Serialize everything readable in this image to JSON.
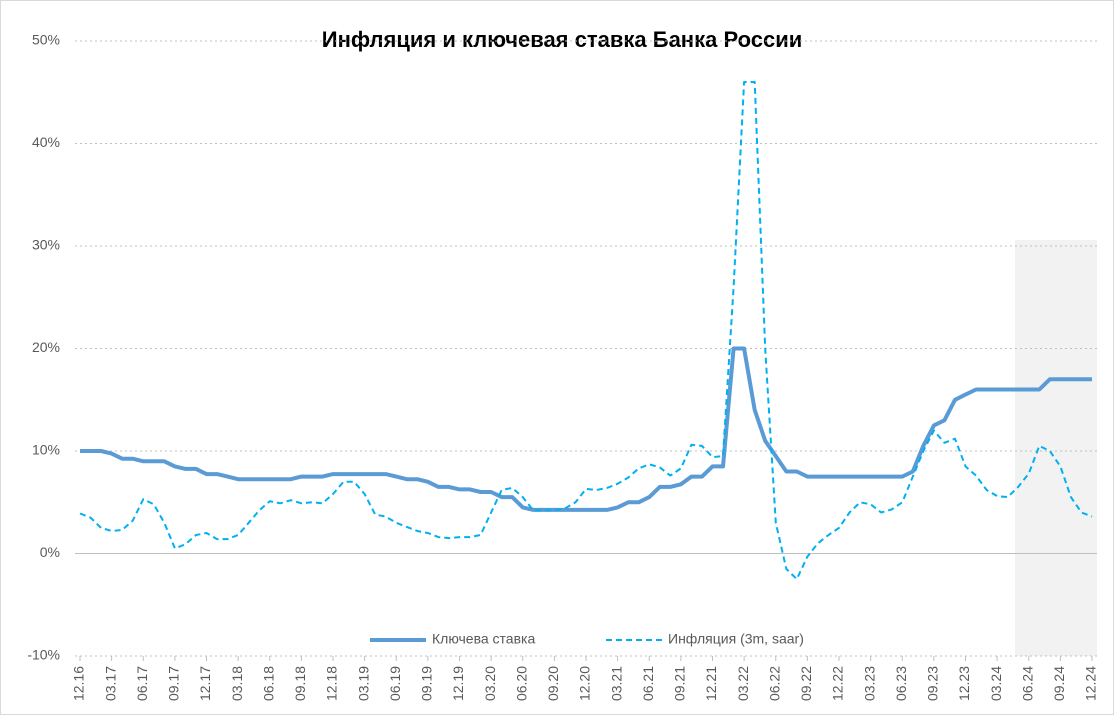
{
  "chart_data": {
    "type": "line",
    "title": "Инфляция и ключевая ставка Банка России",
    "categories": [
      "12.16",
      null,
      null,
      "03.17",
      null,
      null,
      "06.17",
      null,
      null,
      "09.17",
      null,
      null,
      "12.17",
      null,
      null,
      "03.18",
      null,
      null,
      "06.18",
      null,
      null,
      "09.18",
      null,
      null,
      "12.18",
      null,
      null,
      "03.19",
      null,
      null,
      "06.19",
      null,
      null,
      "09.19",
      null,
      null,
      "12.19",
      null,
      null,
      "03.20",
      null,
      null,
      "06.20",
      null,
      null,
      "09.20",
      null,
      null,
      "12.20",
      null,
      null,
      "03.21",
      null,
      null,
      "06.21",
      null,
      null,
      "09.21",
      null,
      null,
      "12.21",
      null,
      null,
      "03.22",
      null,
      null,
      "06.22",
      null,
      null,
      "09.22",
      null,
      null,
      "12.22",
      null,
      null,
      "03.23",
      null,
      null,
      "06.23",
      null,
      null,
      "09.23",
      null,
      null,
      "12.23",
      null,
      null,
      "03.24",
      null,
      null,
      "06.24",
      null,
      null,
      "09.24",
      null,
      null,
      "12.24"
    ],
    "series": [
      {
        "name": "Ключева ставка",
        "color": "#5b9bd5",
        "linestyle": "solid",
        "values": [
          10,
          10,
          10,
          9.75,
          9.25,
          9.25,
          9,
          9,
          9,
          8.5,
          8.25,
          8.25,
          7.75,
          7.75,
          7.5,
          7.25,
          7.25,
          7.25,
          7.25,
          7.25,
          7.25,
          7.5,
          7.5,
          7.5,
          7.75,
          7.75,
          7.75,
          7.75,
          7.75,
          7.75,
          7.5,
          7.25,
          7.25,
          7,
          6.5,
          6.5,
          6.25,
          6.25,
          6,
          6,
          5.5,
          5.5,
          4.5,
          4.25,
          4.25,
          4.25,
          4.25,
          4.25,
          4.25,
          4.25,
          4.25,
          4.5,
          5,
          5,
          5.5,
          6.5,
          6.5,
          6.75,
          7.5,
          7.5,
          8.5,
          8.5,
          20,
          20,
          14,
          11,
          9.5,
          8,
          8,
          7.5,
          7.5,
          7.5,
          7.5,
          7.5,
          7.5,
          7.5,
          7.5,
          7.5,
          7.5,
          8,
          10.5,
          12.5,
          13,
          15,
          15.5,
          16,
          16,
          16,
          16,
          16,
          16,
          16,
          17,
          17,
          17,
          17,
          17
        ]
      },
      {
        "name": "Инфляция (3m, saar)",
        "color": "#00b0f0",
        "linestyle": "dashed",
        "values": [
          3.9,
          3.5,
          2.5,
          2.2,
          2.3,
          3.2,
          5.3,
          4.8,
          3,
          0.5,
          0.9,
          1.8,
          2,
          1.4,
          1.4,
          1.8,
          3,
          4.2,
          5.1,
          4.9,
          5.2,
          4.9,
          5,
          4.9,
          5.8,
          7,
          7,
          5.8,
          3.8,
          3.6,
          3,
          2.6,
          2.2,
          2,
          1.6,
          1.5,
          1.6,
          1.6,
          1.8,
          4,
          6.2,
          6.4,
          5.5,
          4.2,
          4.2,
          4.2,
          4.4,
          5,
          6.3,
          6.2,
          6.4,
          6.8,
          7.4,
          8.3,
          8.7,
          8.4,
          7.6,
          8.3,
          10.6,
          10.5,
          9.4,
          9.5,
          26,
          46,
          46,
          20,
          3,
          -1.5,
          -2.5,
          -0.3,
          1,
          1.8,
          2.5,
          4,
          5,
          4.8,
          4,
          4.3,
          5,
          7.5,
          10,
          12,
          10.8,
          11.2,
          8.5,
          7.6,
          6.2,
          5.6,
          5.5,
          6.5,
          7.8,
          10.5,
          10,
          8.5,
          5.5,
          4,
          3.6
        ]
      }
    ],
    "ylim": [
      -10,
      50
    ],
    "yticks": [
      {
        "value": -10,
        "label": "-10%"
      },
      {
        "value": 0,
        "label": "0%"
      },
      {
        "value": 10,
        "label": "10%"
      },
      {
        "value": 20,
        "label": "20%"
      },
      {
        "value": 30,
        "label": "30%"
      },
      {
        "value": 40,
        "label": "40%"
      },
      {
        "value": 50,
        "label": "50%"
      }
    ],
    "grid": true,
    "legend": "bottom"
  }
}
